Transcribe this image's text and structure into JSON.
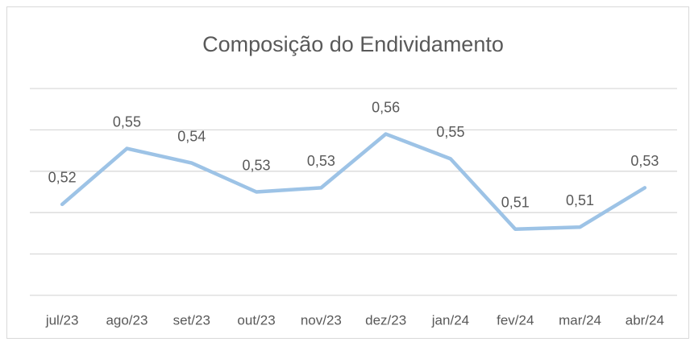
{
  "chart_data": {
    "type": "line",
    "title": "Composição do Endividamento",
    "categories": [
      "jul/23",
      "ago/23",
      "set/23",
      "out/23",
      "nov/23",
      "dez/23",
      "jan/24",
      "fev/24",
      "mar/24",
      "abr/24"
    ],
    "series": [
      {
        "name": "Composição do Endividamento",
        "color": "#9dc3e6",
        "values": [
          0.524,
          0.551,
          0.544,
          0.53,
          0.532,
          0.558,
          0.546,
          0.512,
          0.513,
          0.532
        ],
        "value_labels": [
          "0,52",
          "0,55",
          "0,54",
          "0,53",
          "0,53",
          "0,56",
          "0,55",
          "0,51",
          "0,51",
          "0,53"
        ]
      }
    ],
    "ylim": [
      0.48,
      0.58
    ],
    "yticks": [
      0.48,
      0.5,
      0.52,
      0.54,
      0.56,
      0.58
    ],
    "grid": true
  }
}
